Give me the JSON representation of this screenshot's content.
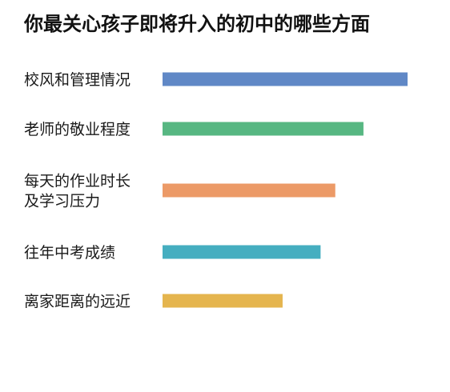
{
  "chart_data": {
    "type": "bar",
    "orientation": "horizontal",
    "title": "你最关心孩子即将升入的初中的哪些方面",
    "xlabel": "",
    "ylabel": "",
    "grid": false,
    "legend": "none",
    "categories": [
      [
        "校风和管理情况"
      ],
      [
        "老师的敬业程度"
      ],
      [
        "每天的作业时长",
        "及学习压力"
      ],
      [
        "往年中考成绩"
      ],
      [
        "离家距离的远近"
      ]
    ],
    "values": [
      100,
      82,
      70.5,
      64.5,
      49
    ],
    "colors": [
      "#6088c6",
      "#57b782",
      "#ec9a67",
      "#45aec0",
      "#e5b54e"
    ],
    "xlim": [
      0,
      100
    ]
  }
}
